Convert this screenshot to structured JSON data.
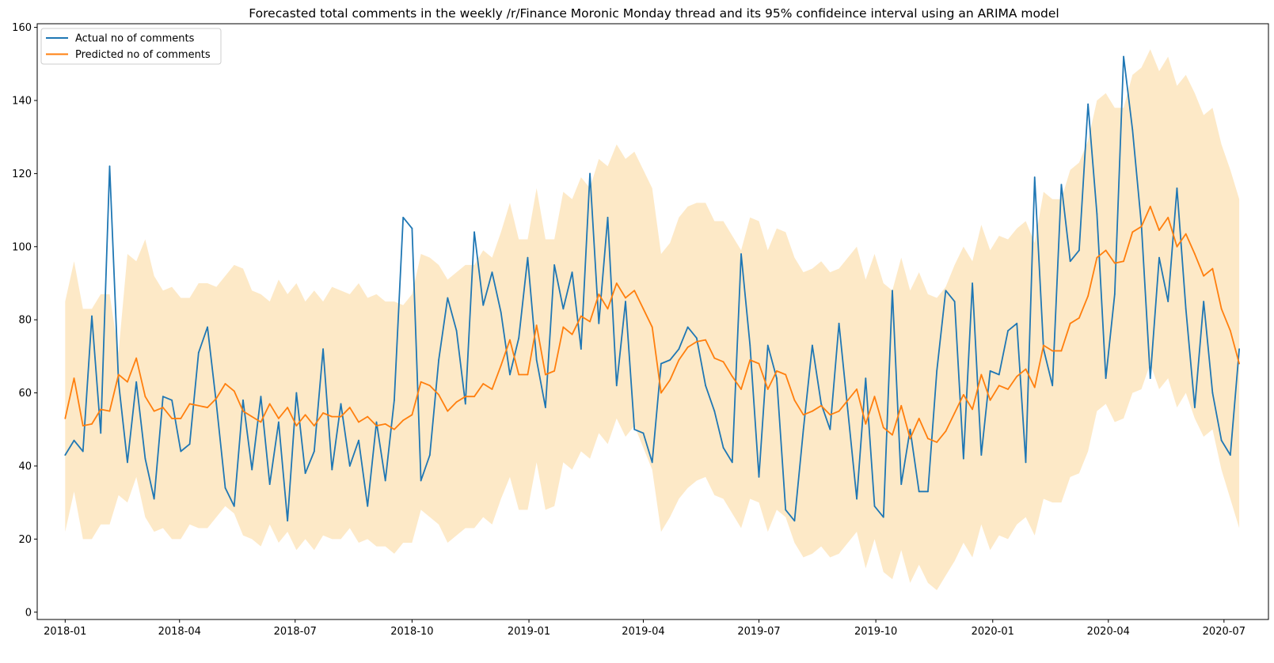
{
  "chart_data": {
    "type": "line",
    "title": "Forecasted total comments in the weekly /r/Finance Moronic Monday thread and its 95% confideince interval using an ARIMA model",
    "xlabel": "",
    "ylabel": "",
    "x_start_date": "2018-01-01",
    "x_interval_days": 7,
    "xlim": [
      "2017-12-10",
      "2020-08-05"
    ],
    "ylim": [
      -2,
      161
    ],
    "x_ticks": [
      "2018-01",
      "2018-04",
      "2018-07",
      "2018-10",
      "2019-01",
      "2019-04",
      "2019-07",
      "2019-10",
      "2020-01",
      "2020-04",
      "2020-07"
    ],
    "y_ticks": [
      0,
      20,
      40,
      60,
      80,
      100,
      120,
      140,
      160
    ],
    "grid": false,
    "legend_position": "upper-left",
    "colors": {
      "actual": "#1f77b4",
      "predicted": "#ff7f0e",
      "interval": "#fde8c4"
    },
    "series": [
      {
        "name": "Actual no of comments",
        "values": [
          43,
          47,
          44,
          81,
          49,
          122,
          63,
          41,
          63,
          42,
          31,
          59,
          58,
          44,
          46,
          71,
          78,
          57,
          34,
          29,
          58,
          39,
          59,
          35,
          52,
          25,
          60,
          38,
          44,
          72,
          39,
          57,
          40,
          47,
          29,
          52,
          36,
          58,
          108,
          105,
          36,
          43,
          69,
          86,
          77,
          57,
          104,
          84,
          93,
          82,
          65,
          75,
          97,
          69,
          56,
          95,
          83,
          93,
          72,
          120,
          79,
          108,
          62,
          85,
          50,
          49,
          41,
          68,
          69,
          72,
          78,
          75,
          62,
          55,
          45,
          41,
          98,
          73,
          37,
          73,
          64,
          28,
          25,
          50,
          73,
          57,
          50,
          79,
          55,
          31,
          64,
          29,
          26,
          88,
          35,
          50,
          33,
          33,
          66,
          88,
          85,
          42,
          90,
          43,
          66,
          65,
          77,
          79,
          41,
          119,
          72,
          62,
          117,
          96,
          99,
          139,
          109,
          64,
          87,
          152,
          132,
          106,
          64,
          97,
          85,
          116,
          83,
          56,
          85,
          60,
          47,
          43,
          72
        ]
      },
      {
        "name": "Predicted no of comments",
        "values": [
          53,
          64,
          51,
          51.5,
          55.5,
          55,
          65,
          63,
          69.5,
          59,
          55,
          56,
          53,
          53,
          57,
          56.5,
          56,
          58.5,
          62.5,
          60.5,
          55,
          53.5,
          52,
          57,
          53,
          56,
          51,
          54,
          51,
          54.5,
          53.5,
          53.5,
          56,
          52,
          53.5,
          51,
          51.5,
          50,
          52.5,
          54,
          63,
          62,
          59.5,
          55,
          57.5,
          59,
          59,
          62.5,
          61,
          67.5,
          74.5,
          65,
          65,
          78.5,
          65,
          66,
          78,
          76,
          81,
          79.5,
          87,
          83,
          90,
          86,
          88,
          83,
          78,
          60,
          63.5,
          69,
          72.5,
          74,
          74.5,
          69.5,
          68.5,
          64.5,
          61,
          69,
          68,
          61,
          66,
          65,
          58,
          54,
          55,
          56.5,
          54,
          55,
          58,
          61,
          51.5,
          59,
          50.5,
          48.5,
          56.5,
          47.5,
          53,
          47.5,
          46.5,
          49.5,
          54.5,
          59.5,
          55.5,
          65,
          58,
          62,
          61,
          64.5,
          66.5,
          61.5,
          73,
          71.5,
          71.5,
          79,
          80.5,
          86.5,
          97,
          99,
          95.5,
          96,
          104,
          105.5,
          111,
          104.5,
          108,
          100,
          103.5,
          98,
          92,
          94,
          83,
          77,
          68
        ]
      },
      {
        "name": "95% confidence interval",
        "upper": [
          85,
          96,
          83,
          83,
          87,
          87,
          71,
          98,
          96,
          102,
          92,
          88,
          89,
          86,
          86,
          90,
          90,
          89,
          92,
          95,
          94,
          88,
          87,
          85,
          91,
          87,
          90,
          85,
          88,
          85,
          89,
          88,
          87,
          90,
          86,
          87,
          85,
          85,
          84,
          87,
          98,
          97,
          95,
          91,
          93,
          95,
          95,
          99,
          97,
          104,
          112,
          102,
          102,
          116,
          102,
          102,
          115,
          113,
          119,
          116,
          124,
          122,
          128,
          124,
          126,
          121,
          116,
          98,
          101,
          108,
          111,
          112,
          112,
          107,
          107,
          103,
          99,
          108,
          107,
          99,
          105,
          104,
          97,
          93,
          94,
          96,
          93,
          94,
          97,
          100,
          91,
          98,
          90,
          88,
          97,
          88,
          93,
          87,
          86,
          89,
          95,
          100,
          96,
          106,
          99,
          103,
          102,
          105,
          107,
          101,
          115,
          113,
          113,
          121,
          123,
          129,
          140,
          142,
          138,
          138,
          147,
          149,
          154,
          148,
          152,
          144,
          147,
          142,
          136,
          138,
          128,
          121,
          113
        ],
        "lower": [
          22,
          33,
          20,
          20,
          24,
          24,
          32,
          30,
          37,
          26,
          22,
          23,
          20,
          20,
          24,
          23,
          23,
          26,
          29,
          27,
          21,
          20,
          18,
          24,
          19,
          22,
          17,
          20,
          17,
          21,
          20,
          20,
          23,
          19,
          20,
          18,
          18,
          16,
          19,
          19,
          28,
          26,
          24,
          19,
          21,
          23,
          23,
          26,
          24,
          31,
          37,
          28,
          28,
          41,
          28,
          29,
          41,
          39,
          44,
          42,
          49,
          46,
          53,
          48,
          51,
          45,
          39,
          22,
          26,
          31,
          34,
          36,
          37,
          32,
          31,
          27,
          23,
          31,
          30,
          22,
          28,
          26,
          19,
          15,
          16,
          18,
          15,
          16,
          19,
          22,
          12,
          20,
          11,
          9,
          17,
          8,
          13,
          8,
          6,
          10,
          14,
          19,
          15,
          24,
          17,
          21,
          20,
          24,
          26,
          21,
          31,
          30,
          30,
          37,
          38,
          44,
          55,
          57,
          52,
          53,
          60,
          61,
          68,
          61,
          64,
          56,
          60,
          53,
          48,
          50,
          39,
          31,
          23
        ]
      }
    ]
  }
}
